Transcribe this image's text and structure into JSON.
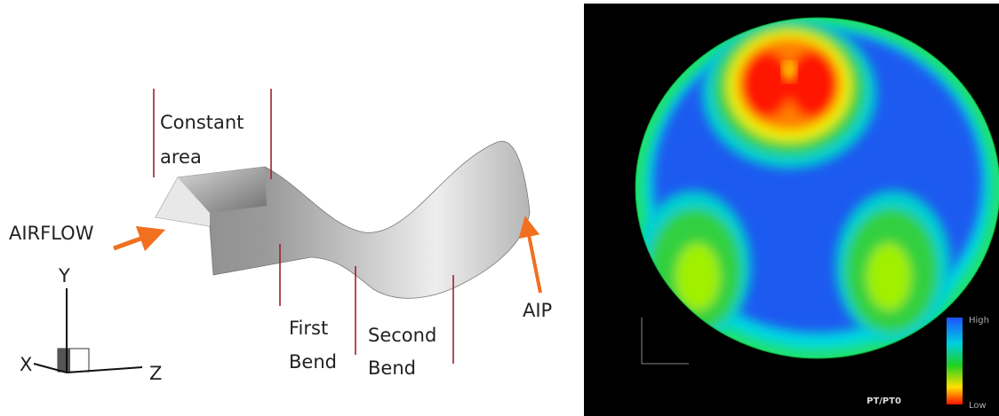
{
  "left_panel": {
    "labels": {
      "constant_area": [
        "Constant",
        "area"
      ],
      "airflow": "AIRFLOW",
      "first_bend": [
        "First",
        "Bend"
      ],
      "second_bend": [
        "Second",
        "Bend"
      ],
      "aip": "AIP"
    },
    "axes": {
      "y": "Y",
      "x": "X",
      "z": "Z"
    }
  },
  "right_panel": {
    "legend": {
      "high": "High",
      "low": "Low"
    },
    "caption": "PT/PT0"
  }
}
